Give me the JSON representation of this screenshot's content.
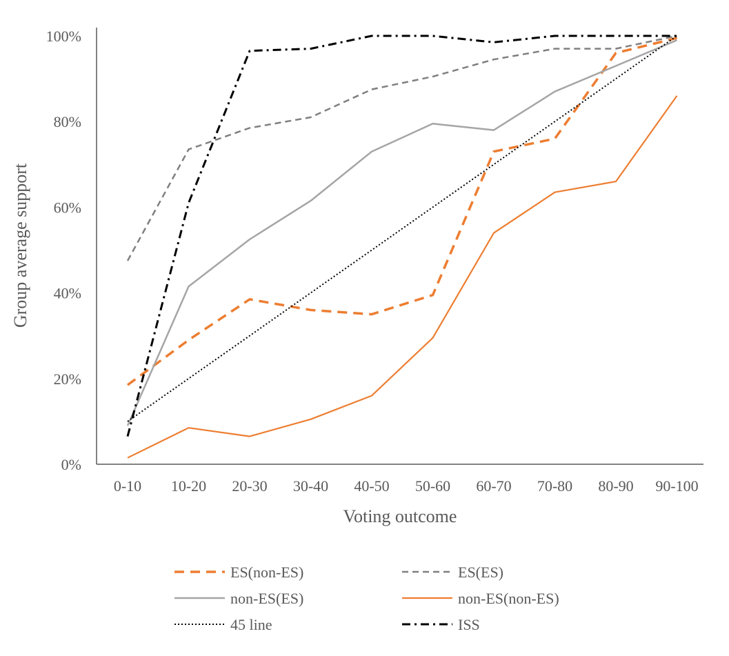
{
  "chart_data": {
    "type": "line",
    "xlabel": "Voting outcome",
    "ylabel": "Group average support",
    "categories": [
      "0-10",
      "10-20",
      "20-30",
      "30-40",
      "40-50",
      "50-60",
      "60-70",
      "70-80",
      "80-90",
      "90-100"
    ],
    "y_ticks": [
      "0%",
      "20%",
      "40%",
      "60%",
      "80%",
      "100%"
    ],
    "ylim": [
      0,
      100
    ],
    "grid": false,
    "legend_position": "bottom",
    "series": [
      {
        "name": "ES(non-ES)",
        "color": "#ED7D31",
        "style": "long-dash-thick",
        "values": [
          18.5,
          29,
          38.5,
          36,
          35,
          39.5,
          73,
          76,
          96,
          99.5
        ]
      },
      {
        "name": "ES(ES)",
        "color": "#7F7F7F",
        "style": "dash",
        "values": [
          47.5,
          73.5,
          78.5,
          81,
          87.5,
          90.5,
          94.5,
          97,
          97,
          100
        ]
      },
      {
        "name": "non-ES(ES)",
        "color": "#A5A5A5",
        "style": "solid",
        "values": [
          9,
          41.5,
          52.5,
          61.5,
          73,
          79.5,
          78,
          87,
          93,
          99
        ]
      },
      {
        "name": "non-ES(non-ES)",
        "color": "#ED7D31",
        "style": "solid-thin",
        "values": [
          1.5,
          8.5,
          6.5,
          10.5,
          16,
          29.5,
          54,
          63.5,
          66,
          86
        ]
      },
      {
        "name": "45 line",
        "color": "#000000",
        "style": "dotted",
        "values": [
          10,
          20,
          30,
          40,
          50,
          60,
          70,
          80,
          90,
          100
        ]
      },
      {
        "name": "ISS",
        "color": "#000000",
        "style": "dash-dot",
        "values": [
          6.5,
          61,
          96.5,
          97,
          100,
          100,
          98.5,
          100,
          100,
          100
        ]
      }
    ]
  }
}
